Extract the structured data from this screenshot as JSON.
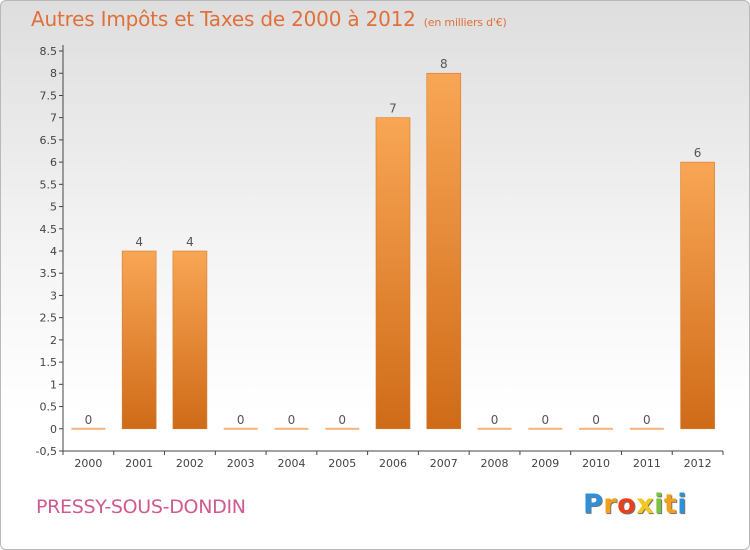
{
  "header": {
    "title": "Autres Impôts et Taxes de 2000 à 2012",
    "subtitle": "(en milliers d'€)"
  },
  "footer": {
    "commune": "PRESSY-SOUS-DONDIN",
    "logo_letters": [
      {
        "ch": "P",
        "color": "#2f8fd8"
      },
      {
        "ch": "r",
        "color": "#f2a01c"
      },
      {
        "ch": "o",
        "color": "#e8401c"
      },
      {
        "ch": "x",
        "color": "#f2c81c"
      },
      {
        "ch": "i",
        "color": "#7cc242"
      },
      {
        "ch": "t",
        "color": "#f2a01c"
      },
      {
        "ch": "i",
        "color": "#2f8fd8"
      }
    ]
  },
  "chart_data": {
    "type": "bar",
    "title": "Autres Impôts et Taxes de 2000 à 2012",
    "subtitle": "(en milliers d'€)",
    "categories": [
      "2000",
      "2001",
      "2002",
      "2003",
      "2004",
      "2005",
      "2006",
      "2007",
      "2008",
      "2009",
      "2010",
      "2011",
      "2012"
    ],
    "values": [
      0,
      4,
      4,
      0,
      0,
      0,
      7,
      8,
      0,
      0,
      0,
      0,
      6
    ],
    "data_labels": [
      "0",
      "4",
      "4",
      "0",
      "0",
      "0",
      "7",
      "8",
      "0",
      "0",
      "0",
      "0",
      "6"
    ],
    "ylim": [
      -0.5,
      8.5
    ],
    "yticks": [
      "-0,5",
      "0",
      "0.5",
      "1",
      "1.5",
      "2",
      "2.5",
      "3",
      "3.5",
      "4",
      "4.5",
      "5",
      "5.5",
      "6",
      "6.5",
      "7",
      "7.5",
      "8",
      "8.5"
    ],
    "xlabel": "",
    "ylabel": "",
    "grid": false,
    "colors": {
      "bar_top": "#f8a655",
      "bar_bottom": "#cf6b18",
      "zero_bar": "#f6b27a",
      "label": "#555555",
      "title": "#e0703a"
    }
  }
}
